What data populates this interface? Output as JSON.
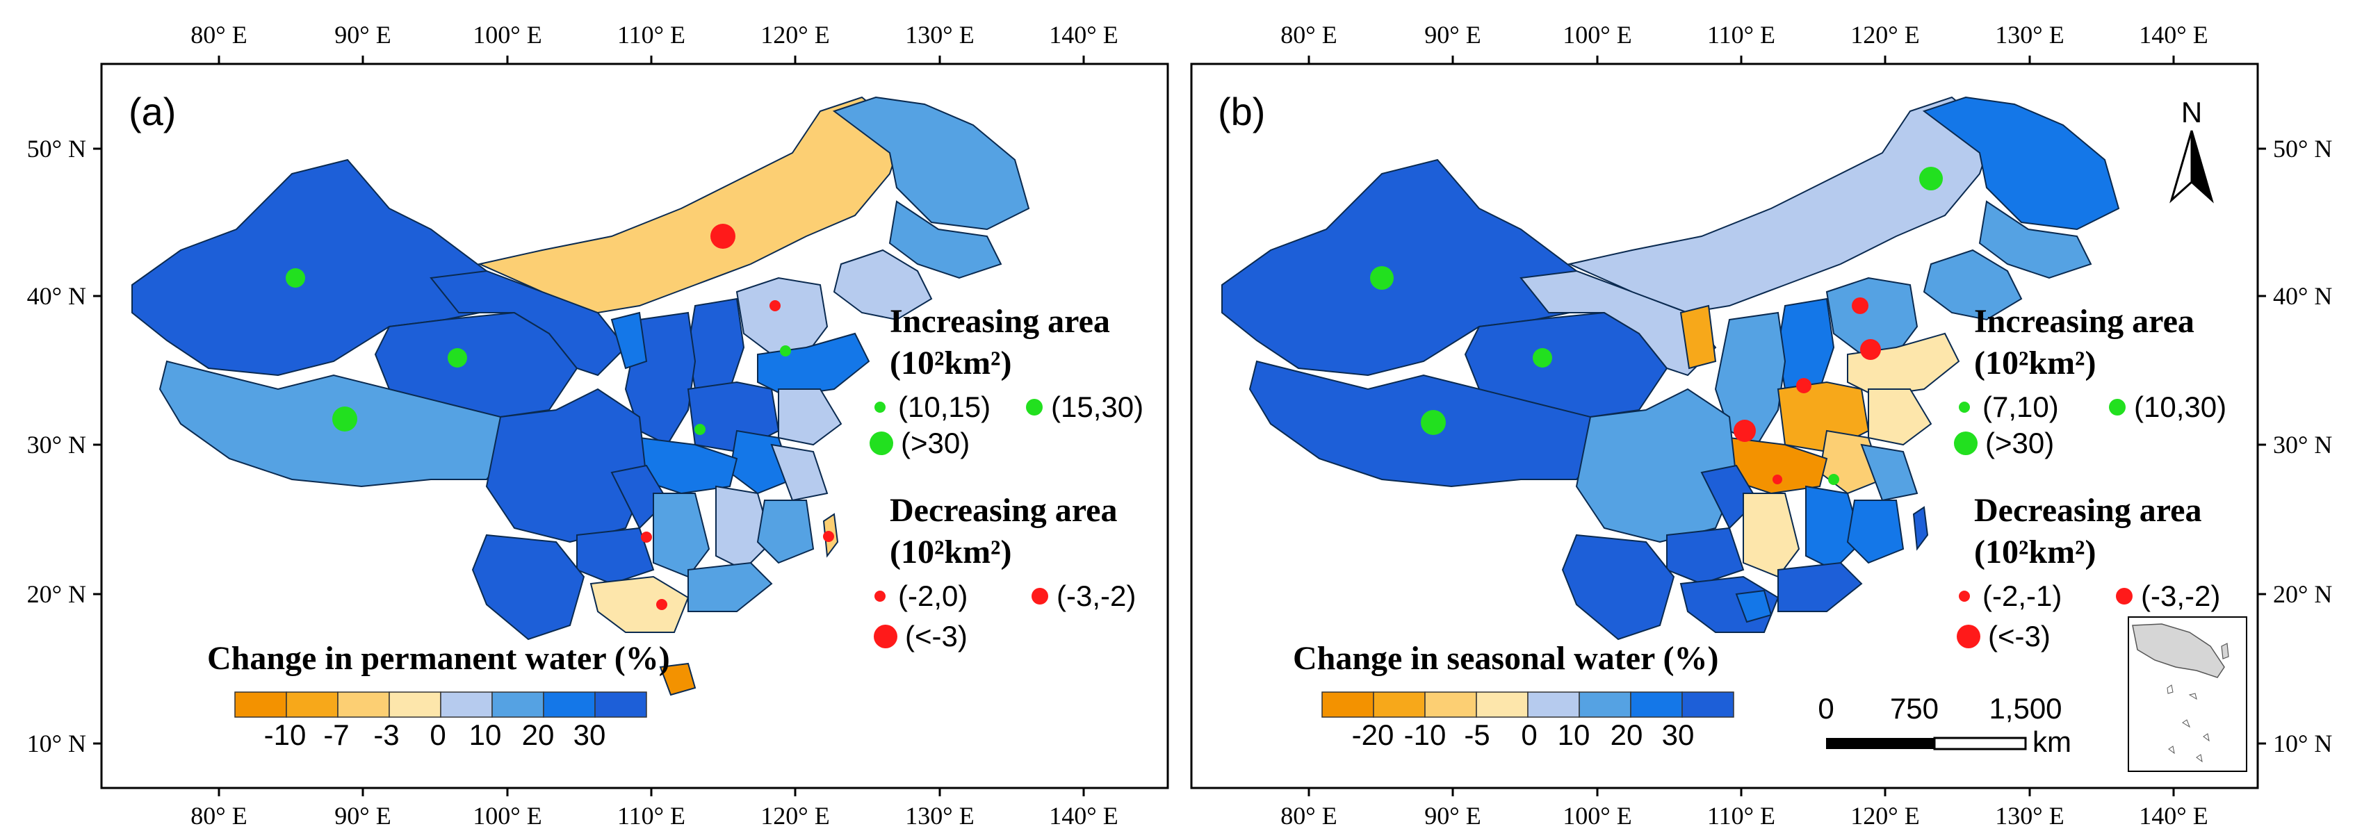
{
  "colors": {
    "frame": "#000000",
    "inc_dot": "#22e01f",
    "dec_dot": "#ff1a1a",
    "scale_p": [
      "#f39200",
      "#f7a81a",
      "#fccf73",
      "#fde6ab",
      "#b6cbee",
      "#55a2e3",
      "#1477e8",
      "#1d5fd8"
    ],
    "scale_s": [
      "#f39200",
      "#f7a81a",
      "#fccf73",
      "#fde6ab",
      "#b6cbee",
      "#55a2e3",
      "#1477e8",
      "#1d5fd8"
    ]
  },
  "axes": {
    "lon_ticks": [
      "80° E",
      "90° E",
      "100° E",
      "110° E",
      "120° E",
      "130° E",
      "140° E"
    ],
    "lat_ticks": [
      "50° N",
      "40° N",
      "30° N",
      "20° N",
      "10° N"
    ]
  },
  "panel_a": {
    "label": "(a)",
    "legend_title": "Change in permanent water (%)",
    "scale_labels": [
      "-10",
      "-7",
      "-3",
      "0",
      "10",
      "20",
      "30"
    ],
    "increasing": {
      "heading": "Increasing area",
      "unit": "(10²km²)",
      "items": [
        "(10,15)",
        "(15,30)",
        "(>30)"
      ]
    },
    "decreasing": {
      "heading": "Decreasing area",
      "unit": "(10²km²)",
      "items": [
        "(-2,0)",
        "(-3,-2)",
        "(<-3)"
      ]
    }
  },
  "panel_b": {
    "label": "(b)",
    "legend_title": "Change in seasonal water (%)",
    "scale_labels": [
      "-20",
      "-10",
      "-5",
      "0",
      "10",
      "20",
      "30"
    ],
    "increasing": {
      "heading": "Increasing area",
      "unit": "(10²km²)",
      "items": [
        "(7,10)",
        "(10,30)",
        "(>30)"
      ]
    },
    "decreasing": {
      "heading": "Decreasing area",
      "unit": "(10²km²)",
      "items": [
        "(-2,-1)",
        "(-3,-2)",
        "(<-3)"
      ]
    },
    "north_label": "N",
    "scale_bar": {
      "ticks": [
        "0",
        "750",
        "1,500"
      ],
      "unit": "km"
    }
  }
}
